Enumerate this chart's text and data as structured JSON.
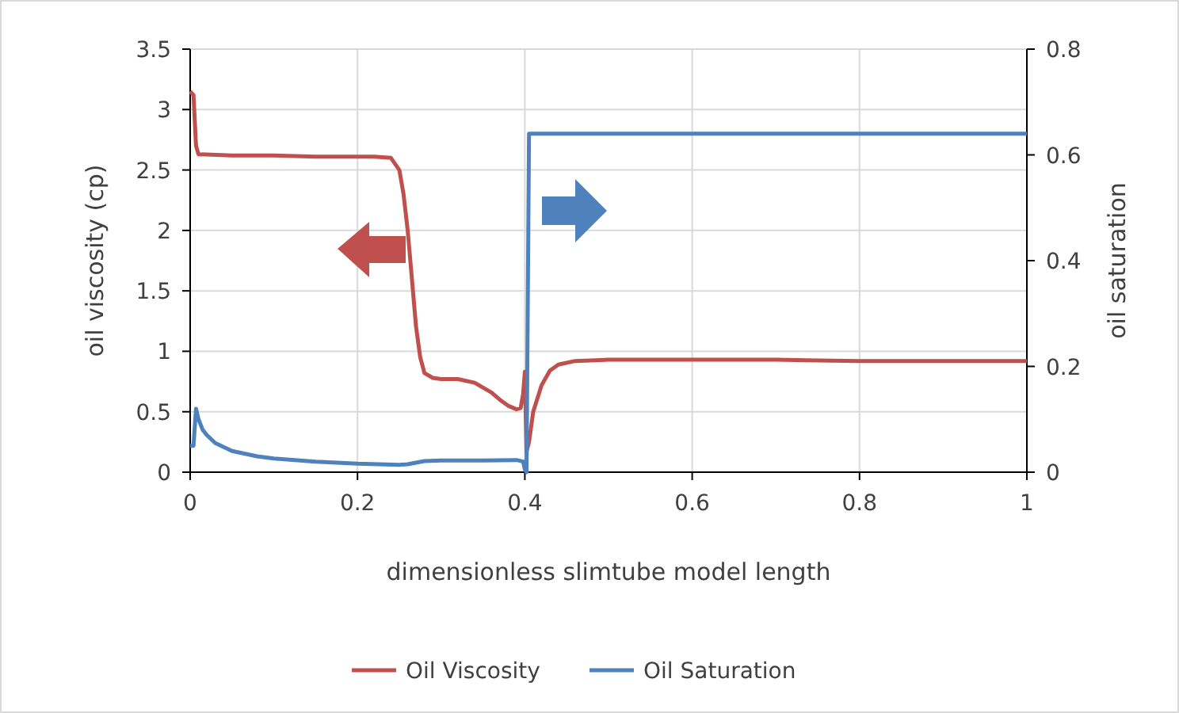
{
  "chart_data": {
    "type": "line",
    "xlabel": "dimensionless slimtube model length",
    "ylabel": "oil viscosity (cp)",
    "y2label": "oil saturation",
    "xlim": [
      0,
      1
    ],
    "xticks": [
      0,
      0.2,
      0.4,
      0.6,
      0.8,
      1
    ],
    "ylim": [
      0,
      3.5
    ],
    "yticks": [
      0,
      0.5,
      1,
      1.5,
      2,
      2.5,
      3,
      3.5
    ],
    "y2lim": [
      0,
      0.8
    ],
    "y2ticks": [
      0,
      0.2,
      0.4,
      0.6,
      0.8
    ],
    "grid": true,
    "legend": "bottom",
    "line_style": "solid",
    "series": [
      {
        "name": "Oil Viscosity",
        "color": "#c0504d",
        "x": [
          0,
          0.004,
          0.007,
          0.01,
          0.05,
          0.1,
          0.15,
          0.2,
          0.22,
          0.24,
          0.25,
          0.255,
          0.26,
          0.265,
          0.27,
          0.275,
          0.28,
          0.29,
          0.3,
          0.32,
          0.34,
          0.36,
          0.37,
          0.38,
          0.39,
          0.395,
          0.398,
          0.4,
          0.402,
          0.405,
          0.41,
          0.42,
          0.43,
          0.44,
          0.46,
          0.5,
          0.6,
          0.7,
          0.8,
          0.9,
          1
        ],
        "values": [
          3.15,
          3.12,
          2.7,
          2.63,
          2.62,
          2.62,
          2.61,
          2.61,
          2.61,
          2.6,
          2.5,
          2.3,
          2.0,
          1.6,
          1.2,
          0.95,
          0.82,
          0.78,
          0.77,
          0.77,
          0.74,
          0.66,
          0.6,
          0.55,
          0.52,
          0.53,
          0.65,
          0.83,
          0.17,
          0.25,
          0.5,
          0.72,
          0.84,
          0.89,
          0.92,
          0.93,
          0.93,
          0.93,
          0.92,
          0.92,
          0.92
        ]
      },
      {
        "name": "Oil Saturation",
        "color": "#4f81bd",
        "axis": "y2",
        "x": [
          0,
          0.004,
          0.007,
          0.01,
          0.015,
          0.02,
          0.03,
          0.05,
          0.08,
          0.1,
          0.15,
          0.2,
          0.25,
          0.26,
          0.28,
          0.3,
          0.35,
          0.39,
          0.398,
          0.4,
          0.402,
          0.405,
          0.5,
          0.6,
          0.8,
          1
        ],
        "values": [
          0.05,
          0.05,
          0.12,
          0.1,
          0.08,
          0.07,
          0.055,
          0.04,
          0.03,
          0.026,
          0.02,
          0.016,
          0.014,
          0.015,
          0.021,
          0.022,
          0.022,
          0.023,
          0.02,
          0.005,
          0.0,
          0.64,
          0.64,
          0.64,
          0.64,
          0.64
        ]
      }
    ]
  }
}
